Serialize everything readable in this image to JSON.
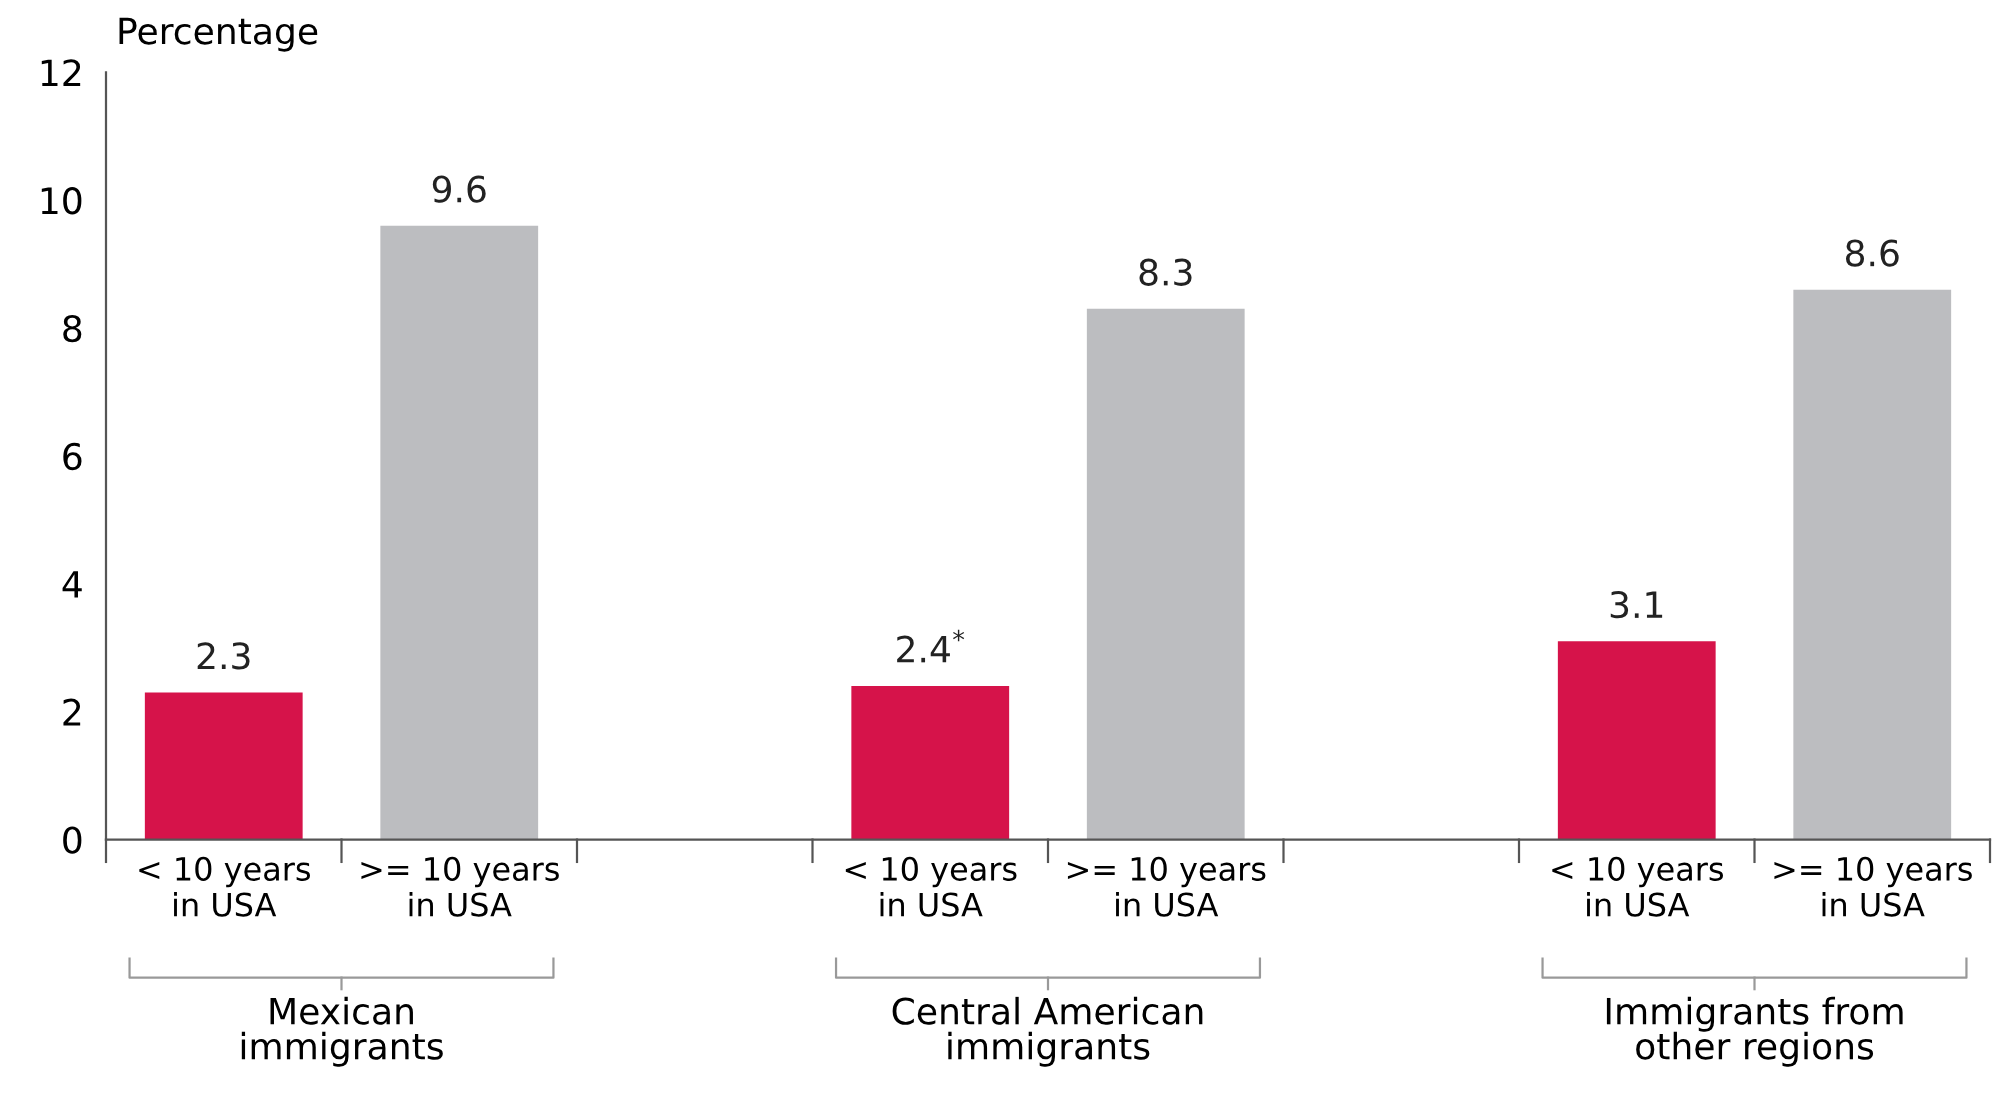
{
  "chart_data": {
    "type": "bar",
    "ylabel": "Percentage",
    "categories": [
      "< 10 years\nin USA",
      ">= 10 years\nin USA",
      null,
      "< 10 years\nin USA",
      ">= 10 years\nin USA",
      null,
      "< 10 years\nin USA",
      ">= 10 years\nin USA"
    ],
    "values": [
      2.3,
      9.6,
      null,
      2.4,
      8.3,
      null,
      3.1,
      8.6
    ],
    "colors": [
      "#d6134a",
      "#bcbdc0",
      "#bcbdc0",
      "#d6134a",
      "#bcbdc0",
      "#bcbdc0",
      "#d6134a",
      "#bcbdc0"
    ],
    "value_labels": [
      "2.3",
      "9.6",
      null,
      "2.4$^{*}$",
      "8.3",
      null,
      "3.1",
      "8.6"
    ],
    "ylim": [
      0,
      12
    ],
    "yticks": [
      0,
      2,
      4,
      6,
      8,
      10,
      12
    ],
    "grid": false,
    "annotations": [
      "Mexican\nimmigrants",
      "Central American\nimmigrants",
      "Immigrants from\nother regions"
    ]
  }
}
